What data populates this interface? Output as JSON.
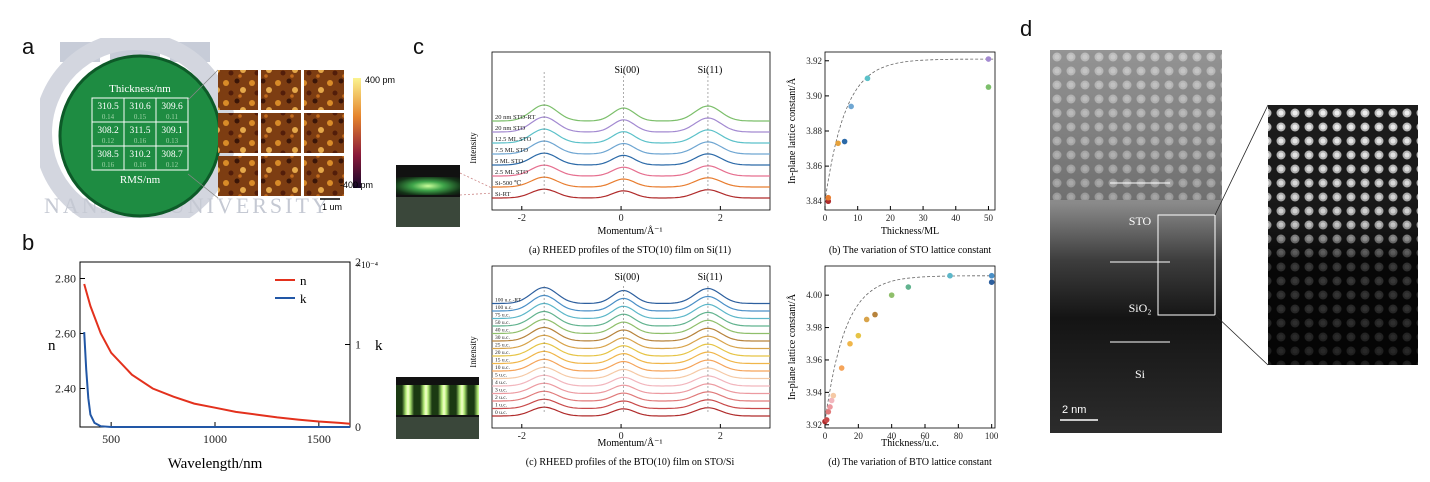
{
  "panel_letters": {
    "a": "a",
    "b": "b",
    "c": "c",
    "d": "d"
  },
  "panel_a": {
    "thickness_label": "Thickness/nm",
    "rms_label": "RMS/nm",
    "grid": [
      [
        {
          "t": "310.5",
          "r": "0.14"
        },
        {
          "t": "310.6",
          "r": "0.15"
        },
        {
          "t": "309.6",
          "r": "0.11"
        }
      ],
      [
        {
          "t": "308.2",
          "r": "0.12"
        },
        {
          "t": "311.5",
          "r": "0.16"
        },
        {
          "t": "309.1",
          "r": "0.13"
        }
      ],
      [
        {
          "t": "308.5",
          "r": "0.16"
        },
        {
          "t": "310.2",
          "r": "0.16"
        },
        {
          "t": "308.7",
          "r": "0.12"
        }
      ]
    ],
    "logo_text": "NANJING UNIVERSITY",
    "colorbar_max": "400 pm",
    "colorbar_min": "-400 pm",
    "scalebar": "1 um"
  },
  "chart_data": [
    {
      "id": "b",
      "type": "line",
      "xlabel": "Wavelength/nm",
      "ylabel": "n",
      "y2label": "k",
      "xlim": [
        350,
        1650
      ],
      "ylim": [
        2.26,
        2.86
      ],
      "y2lim": [
        0,
        2.0
      ],
      "y2_exponent": "×10⁻⁴",
      "xticks": [
        "500",
        "1000",
        "1500"
      ],
      "yticks": [
        "2.40",
        "2.60",
        "2.80"
      ],
      "y2ticks": [
        "0",
        "1",
        "2"
      ],
      "legend_position": "top-right",
      "series": [
        {
          "name": "n",
          "color": "#e3311d",
          "axis": "left",
          "x": [
            370,
            400,
            450,
            500,
            600,
            700,
            800,
            900,
            1000,
            1100,
            1200,
            1300,
            1400,
            1500,
            1600,
            1650
          ],
          "values": [
            2.78,
            2.7,
            2.6,
            2.53,
            2.45,
            2.4,
            2.37,
            2.345,
            2.33,
            2.315,
            2.305,
            2.295,
            2.287,
            2.28,
            2.275,
            2.272
          ]
        },
        {
          "name": "k",
          "color": "#2257a6",
          "axis": "right",
          "x": [
            370,
            380,
            390,
            400,
            420,
            450,
            500,
            600,
            1000,
            1650
          ],
          "values": [
            1.15,
            0.7,
            0.35,
            0.15,
            0.05,
            0.01,
            0,
            0,
            0,
            0
          ]
        }
      ]
    },
    {
      "id": "c-a",
      "type": "line",
      "title": "(a) RHEED profiles of the STO(10) film on Si(11)",
      "xlabel": "Momentum/Å⁻¹",
      "ylabel": "Intensity",
      "xlim": [
        -2.6,
        3.0
      ],
      "xticks": [
        "-2",
        "0",
        "2"
      ],
      "peak_labels": [
        "Si(00)",
        "Si(11)"
      ],
      "series": [
        {
          "name": "Si-RT",
          "color": "#b02b2b"
        },
        {
          "name": "Si-500 ℃",
          "color": "#e87d2f"
        },
        {
          "name": "2.5 ML STO",
          "color": "#e66f8f"
        },
        {
          "name": "5 ML STO",
          "color": "#2c6aa8"
        },
        {
          "name": "7.5 ML STO",
          "color": "#6fa6d2"
        },
        {
          "name": "12.5 ML STO",
          "color": "#5bc1c9"
        },
        {
          "name": "20 nm STO",
          "color": "#a38ad1"
        },
        {
          "name": "20 nm STO-RT",
          "color": "#7cbf6b"
        }
      ]
    },
    {
      "id": "c-b",
      "type": "scatter",
      "title": "(b) The variation of STO lattice constant",
      "xlabel": "Thickness/ML",
      "ylabel": "In-plane lattice constant/Å",
      "xlim": [
        0,
        52
      ],
      "ylim": [
        3.835,
        3.925
      ],
      "xticks": [
        "0",
        "10",
        "20",
        "30",
        "40",
        "50"
      ],
      "yticks": [
        "3.84",
        "3.86",
        "3.88",
        "3.90",
        "3.92"
      ],
      "fit_curve": "dashed",
      "points": [
        {
          "x": 1,
          "y": 3.84,
          "color": "#b02b2b"
        },
        {
          "x": 1,
          "y": 3.842,
          "color": "#e87d2f"
        },
        {
          "x": 4,
          "y": 3.873,
          "color": "#e6a23c"
        },
        {
          "x": 6,
          "y": 3.874,
          "color": "#2c6aa8"
        },
        {
          "x": 8,
          "y": 3.894,
          "color": "#6fa6d2"
        },
        {
          "x": 13,
          "y": 3.91,
          "color": "#5bc1c9"
        },
        {
          "x": 50,
          "y": 3.921,
          "color": "#a38ad1"
        },
        {
          "x": 50,
          "y": 3.905,
          "color": "#7cbf6b"
        }
      ]
    },
    {
      "id": "c-c",
      "type": "line",
      "title": "(c) RHEED profiles of the BTO(10) film on STO/Si",
      "xlabel": "Momentum/Å⁻¹",
      "ylabel": "Intensity",
      "xlim": [
        -2.6,
        3.0
      ],
      "xticks": [
        "-2",
        "0",
        "2"
      ],
      "peak_labels": [
        "Si(00)",
        "Si(11)"
      ],
      "series": [
        {
          "name": "0 u.c.",
          "color": "#b02b2b"
        },
        {
          "name": "1 u.c.",
          "color": "#c84a4a"
        },
        {
          "name": "2 u.c.",
          "color": "#e07a7a"
        },
        {
          "name": "3 u.c.",
          "color": "#ec9aa0"
        },
        {
          "name": "4 u.c.",
          "color": "#f2b6bd"
        },
        {
          "name": "5 u.c.",
          "color": "#f5c9a5"
        },
        {
          "name": "10 u.c.",
          "color": "#f5a45a"
        },
        {
          "name": "15 u.c.",
          "color": "#f0b64a"
        },
        {
          "name": "20 u.c.",
          "color": "#e6c445"
        },
        {
          "name": "25 u.c.",
          "color": "#d8a34a"
        },
        {
          "name": "30 u.c.",
          "color": "#b7833c"
        },
        {
          "name": "40 u.c.",
          "color": "#8fbf6b"
        },
        {
          "name": "50 u.c.",
          "color": "#62b38f"
        },
        {
          "name": "75 u.c.",
          "color": "#5cb7c9"
        },
        {
          "name": "100 u.c.",
          "color": "#4a8fc7"
        },
        {
          "name": "100 u.c.-RT",
          "color": "#2d5f9e"
        }
      ]
    },
    {
      "id": "c-d",
      "type": "scatter",
      "title": "(d) The variation of BTO lattice constant",
      "xlabel": "Thickness/u.c.",
      "ylabel": "In-plane lattice constant/Å",
      "xlim": [
        0,
        102
      ],
      "ylim": [
        3.918,
        4.018
      ],
      "xticks": [
        "0",
        "20",
        "40",
        "60",
        "80",
        "100"
      ],
      "yticks": [
        "3.92",
        "3.94",
        "3.96",
        "3.98",
        "4.00"
      ],
      "fit_curve": "dashed",
      "points": [
        {
          "x": 0,
          "y": 3.922,
          "color": "#b02b2b"
        },
        {
          "x": 1,
          "y": 3.923,
          "color": "#c84a4a"
        },
        {
          "x": 2,
          "y": 3.928,
          "color": "#e07a7a"
        },
        {
          "x": 3,
          "y": 3.931,
          "color": "#ec9aa0"
        },
        {
          "x": 4,
          "y": 3.935,
          "color": "#f2b6bd"
        },
        {
          "x": 5,
          "y": 3.938,
          "color": "#f5c9a5"
        },
        {
          "x": 10,
          "y": 3.955,
          "color": "#f5a45a"
        },
        {
          "x": 15,
          "y": 3.97,
          "color": "#f0b64a"
        },
        {
          "x": 20,
          "y": 3.975,
          "color": "#e6c445"
        },
        {
          "x": 25,
          "y": 3.985,
          "color": "#d8a34a"
        },
        {
          "x": 30,
          "y": 3.988,
          "color": "#b7833c"
        },
        {
          "x": 40,
          "y": 4.0,
          "color": "#8fbf6b"
        },
        {
          "x": 50,
          "y": 4.005,
          "color": "#62b38f"
        },
        {
          "x": 75,
          "y": 4.012,
          "color": "#5cb7c9"
        },
        {
          "x": 100,
          "y": 4.012,
          "color": "#4a8fc7"
        },
        {
          "x": 100,
          "y": 4.008,
          "color": "#2d5f9e"
        }
      ]
    }
  ],
  "panel_d": {
    "labels": [
      "STO",
      "SiO₂",
      "Si"
    ],
    "scalebar": "2 nm"
  }
}
